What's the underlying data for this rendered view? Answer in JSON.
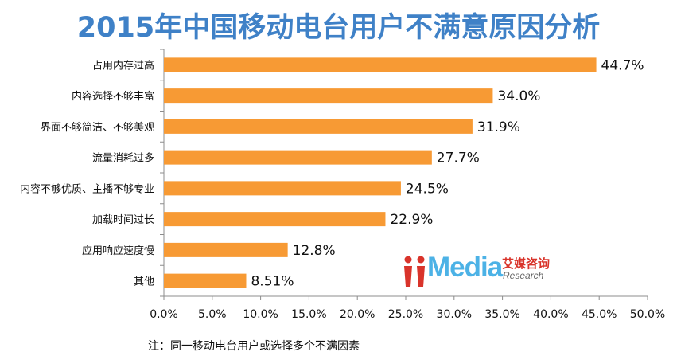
{
  "title": "2015年中国移动电台用户不满意原因分析",
  "footnote": "注：同一移动电台用户或选择多个不满因素",
  "logo": {
    "word": "Media",
    "cn": "艾媒咨询",
    "en": "Research",
    "colors": {
      "mark": "#d9342b",
      "word": "#4cb2e6"
    }
  },
  "colors": {
    "bar": "#f79a34",
    "title": "#3f81c7",
    "axis": "#8c8c8c"
  },
  "chart_data": {
    "type": "bar",
    "orientation": "horizontal",
    "categories": [
      "占用内存过高",
      "内容选择不够丰富",
      "界面不够简洁、不够美观",
      "流量消耗过多",
      "内容不够优质、主播不够专业",
      "加载时间过长",
      "应用响应速度慢",
      "其他"
    ],
    "values": [
      44.7,
      34.0,
      31.9,
      27.7,
      24.5,
      22.9,
      12.8,
      8.51
    ],
    "value_labels": [
      "44.7%",
      "34.0%",
      "31.9%",
      "27.7%",
      "24.5%",
      "22.9%",
      "12.8%",
      "8.51%"
    ],
    "xlim": [
      0,
      50
    ],
    "xticks": [
      0,
      5,
      10,
      15,
      20,
      25,
      30,
      35,
      40,
      45,
      50
    ],
    "xtick_labels": [
      "0.0%",
      "5.0%",
      "10.0%",
      "15.0%",
      "20.0%",
      "25.0%",
      "30.0%",
      "35.0%",
      "40.0%",
      "45.0%",
      "50.0%"
    ],
    "grid": false,
    "legend": "none"
  }
}
